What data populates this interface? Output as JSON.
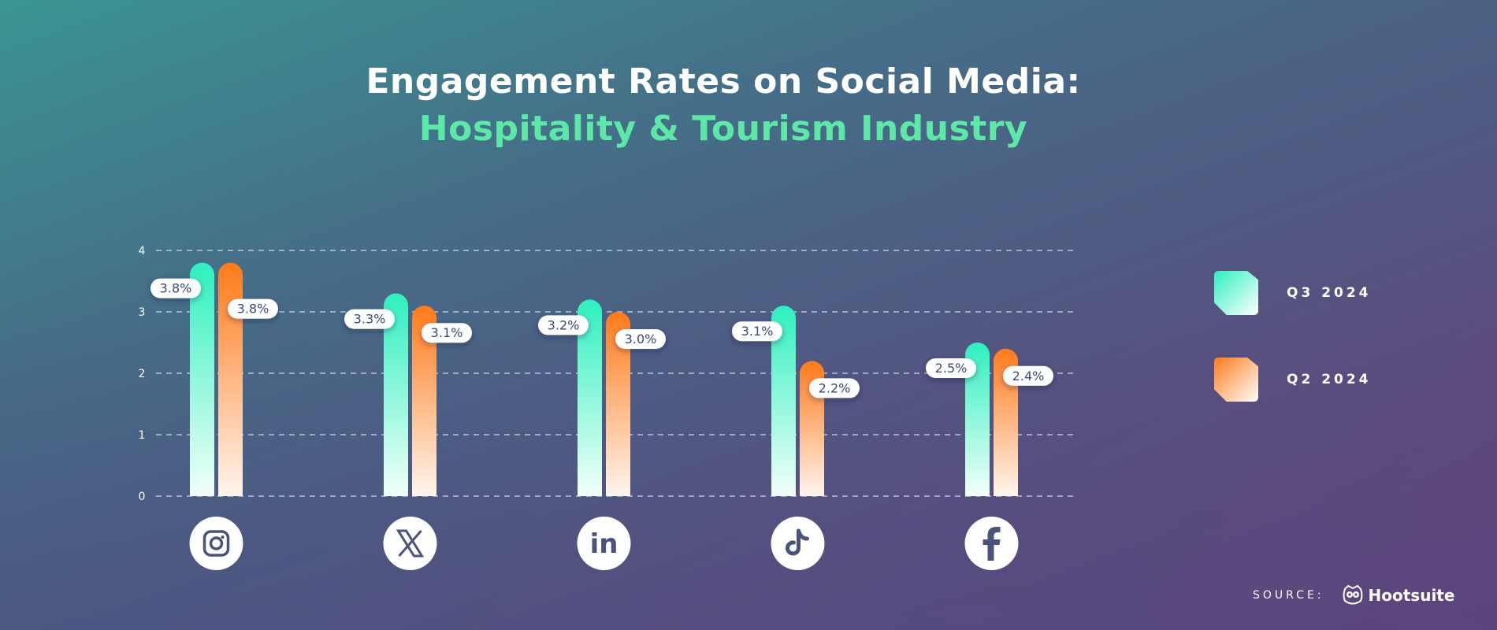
{
  "title": "Engagement Rates on Social Media:",
  "subtitle": "Hospitality & Tourism Industry",
  "chart_data": {
    "type": "bar",
    "title": "Engagement Rates on Social Media: Hospitality & Tourism Industry",
    "categories": [
      "Instagram",
      "X",
      "LinkedIn",
      "TikTok",
      "Facebook"
    ],
    "category_icons": [
      "instagram-icon",
      "x-icon",
      "linkedin-icon",
      "tiktok-icon",
      "facebook-icon"
    ],
    "series": [
      {
        "name": "Q3 2024",
        "values": [
          3.8,
          3.3,
          3.2,
          3.1,
          2.5
        ],
        "labels": [
          "3.8%",
          "3.3%",
          "3.2%",
          "3.1%",
          "2.5%"
        ],
        "color": "#2ef0be"
      },
      {
        "name": "Q2 2024",
        "values": [
          3.8,
          3.1,
          3.0,
          2.2,
          2.4
        ],
        "labels": [
          "3.8%",
          "3.1%",
          "3.0%",
          "2.2%",
          "2.4%"
        ],
        "color": "#ff7a1a"
      }
    ],
    "yticks": [
      "0",
      "1",
      "2",
      "3",
      "4"
    ],
    "ylim": [
      0,
      4
    ],
    "grid": true,
    "legend_position": "right"
  },
  "legend": [
    {
      "label": "Q3 2024"
    },
    {
      "label": "Q2 2024"
    }
  ],
  "source": {
    "label": "SOURCE:",
    "brand": "Hootsuite"
  }
}
